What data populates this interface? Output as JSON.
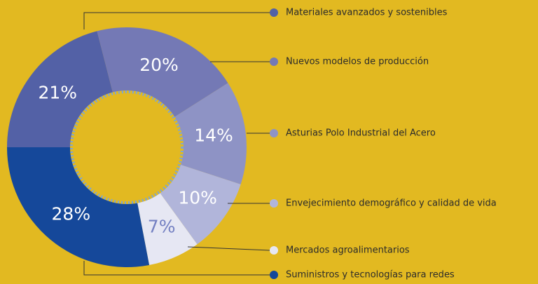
{
  "chart_data": {
    "type": "donut",
    "categories": [
      "Materiales avanzados y sostenibles",
      "Nuevos modelos de producción",
      "Asturias Polo Industrial del Acero",
      "Envejecimiento demográfico y calidad de vida",
      "Mercados agroalimentarios",
      "Suministros y tecnologías para redes"
    ],
    "values": [
      21,
      20,
      14,
      10,
      7,
      28
    ],
    "value_labels": [
      "21%",
      "20%",
      "14%",
      "10%",
      "7%",
      "28%"
    ],
    "colors": [
      "#5361a6",
      "#7479b5",
      "#8e93c5",
      "#b1b5da",
      "#e6e7f3",
      "#15489a"
    ]
  }
}
